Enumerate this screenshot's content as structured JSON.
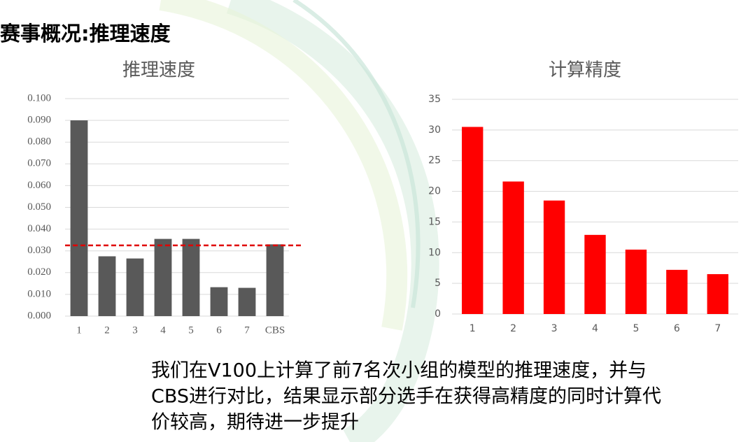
{
  "title": "赛事概况:推理速度",
  "chart_data": [
    {
      "type": "bar",
      "title": "推理速度",
      "categories": [
        "1",
        "2",
        "3",
        "4",
        "5",
        "6",
        "7",
        "CBS"
      ],
      "values": [
        0.09,
        0.0275,
        0.0265,
        0.0355,
        0.0355,
        0.0133,
        0.013,
        0.033
      ],
      "color": "#595959",
      "ylim": [
        0,
        0.1
      ],
      "yticks": [
        {
          "value": 0,
          "label": "0.000"
        },
        {
          "value": 0.01,
          "label": "0.010"
        },
        {
          "value": 0.02,
          "label": "0.020"
        },
        {
          "value": 0.03,
          "label": "0.030"
        },
        {
          "value": 0.04,
          "label": "0.040"
        },
        {
          "value": 0.05,
          "label": "0.050"
        },
        {
          "value": 0.06,
          "label": "0.060"
        },
        {
          "value": 0.07,
          "label": "0.070"
        },
        {
          "value": 0.08,
          "label": "0.080"
        },
        {
          "value": 0.09,
          "label": "0.090"
        },
        {
          "value": 0.1,
          "label": "0.100"
        }
      ],
      "grid": true,
      "reference_line": {
        "value": 0.0325,
        "color": "#e00000"
      }
    },
    {
      "type": "bar",
      "title": "计算精度",
      "categories": [
        "1",
        "2",
        "3",
        "4",
        "5",
        "6",
        "7"
      ],
      "values": [
        30.5,
        21.6,
        18.5,
        12.9,
        10.5,
        7.2,
        6.5
      ],
      "color": "#ff0000",
      "ylim": [
        0,
        35
      ],
      "yticks": [
        0,
        5,
        10,
        15,
        20,
        25,
        30,
        35
      ],
      "grid": true
    }
  ],
  "caption": [
    "我们在V100上计算了前7名次小组的模型的推理速度，并与",
    "CBS进行对比，结果显示部分选手在获得高精度的同时计算代",
    "价较高，期待进一步提升"
  ]
}
